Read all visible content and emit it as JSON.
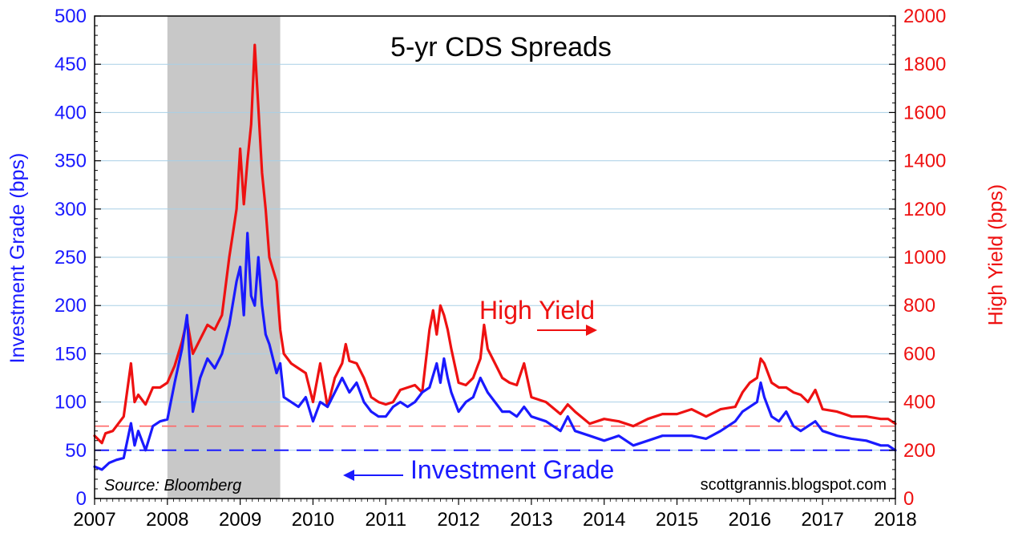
{
  "chart_data": {
    "type": "line",
    "title": "5-yr CDS Spreads",
    "ylabel_left": "Investment Grade (bps)",
    "ylabel_right": "High Yield (bps)",
    "ylim_left": [
      0,
      500
    ],
    "ylim_right": [
      0,
      2000
    ],
    "yticks_left": [
      "0",
      "50",
      "100",
      "150",
      "200",
      "250",
      "300",
      "350",
      "400",
      "450",
      "500"
    ],
    "yticks_right": [
      "0",
      "200",
      "400",
      "600",
      "800",
      "1000",
      "1200",
      "1400",
      "1600",
      "1800",
      "2000"
    ],
    "xlim": [
      2007,
      2018
    ],
    "xticks": [
      "2007",
      "2008",
      "2009",
      "2010",
      "2011",
      "2012",
      "2013",
      "2014",
      "2015",
      "2016",
      "2017",
      "2018"
    ],
    "grid": true,
    "recession_shading": [
      2008.0,
      2009.55
    ],
    "reference_lines": [
      {
        "axis": "left",
        "value": 50,
        "style": "dashed",
        "color": "#1a1aff"
      },
      {
        "axis": "right",
        "value": 300,
        "style": "dashed",
        "color": "#ff6666"
      }
    ],
    "annotations": {
      "high_yield": "High Yield",
      "investment_grade": "Investment Grade",
      "source": "Source: Bloomberg",
      "credit": "scottgrannis.blogspot.com"
    },
    "colors": {
      "high_yield": "#ee1111",
      "investment_grade": "#1a1aff",
      "recession": "#c8c8c8"
    },
    "series": [
      {
        "name": "High Yield",
        "axis": "right",
        "x": [
          2007.0,
          2007.1,
          2007.15,
          2007.25,
          2007.4,
          2007.5,
          2007.55,
          2007.6,
          2007.7,
          2007.8,
          2007.9,
          2008.0,
          2008.1,
          2008.2,
          2008.27,
          2008.35,
          2008.45,
          2008.55,
          2008.65,
          2008.75,
          2008.85,
          2008.9,
          2008.95,
          2009.0,
          2009.05,
          2009.1,
          2009.15,
          2009.2,
          2009.25,
          2009.3,
          2009.35,
          2009.4,
          2009.45,
          2009.5,
          2009.55,
          2009.6,
          2009.7,
          2009.8,
          2009.9,
          2010.0,
          2010.1,
          2010.2,
          2010.3,
          2010.4,
          2010.45,
          2010.5,
          2010.6,
          2010.7,
          2010.8,
          2010.9,
          2011.0,
          2011.1,
          2011.2,
          2011.3,
          2011.4,
          2011.5,
          2011.6,
          2011.65,
          2011.7,
          2011.75,
          2011.8,
          2011.85,
          2011.9,
          2012.0,
          2012.1,
          2012.2,
          2012.3,
          2012.35,
          2012.4,
          2012.5,
          2012.6,
          2012.7,
          2012.8,
          2012.9,
          2013.0,
          2013.2,
          2013.4,
          2013.5,
          2013.6,
          2013.8,
          2014.0,
          2014.2,
          2014.4,
          2014.6,
          2014.8,
          2015.0,
          2015.2,
          2015.4,
          2015.6,
          2015.8,
          2015.9,
          2016.0,
          2016.1,
          2016.15,
          2016.2,
          2016.3,
          2016.4,
          2016.5,
          2016.6,
          2016.7,
          2016.8,
          2016.9,
          2017.0,
          2017.2,
          2017.4,
          2017.6,
          2017.8,
          2017.9,
          2018.0
        ],
        "values": [
          260,
          230,
          270,
          280,
          340,
          560,
          400,
          430,
          390,
          460,
          460,
          480,
          550,
          650,
          740,
          600,
          660,
          720,
          700,
          760,
          1000,
          1100,
          1200,
          1450,
          1220,
          1400,
          1550,
          1880,
          1620,
          1350,
          1200,
          1000,
          950,
          900,
          700,
          600,
          560,
          540,
          520,
          400,
          560,
          380,
          500,
          560,
          640,
          570,
          560,
          500,
          420,
          400,
          390,
          400,
          450,
          460,
          470,
          440,
          700,
          780,
          680,
          800,
          760,
          700,
          620,
          480,
          470,
          500,
          580,
          720,
          620,
          560,
          500,
          480,
          470,
          560,
          420,
          400,
          350,
          390,
          360,
          310,
          330,
          320,
          300,
          330,
          350,
          350,
          370,
          340,
          370,
          380,
          440,
          480,
          500,
          580,
          560,
          480,
          460,
          460,
          440,
          430,
          400,
          450,
          370,
          360,
          340,
          340,
          330,
          330,
          310
        ]
      },
      {
        "name": "Investment Grade",
        "axis": "left",
        "x": [
          2007.0,
          2007.1,
          2007.2,
          2007.3,
          2007.4,
          2007.5,
          2007.55,
          2007.6,
          2007.7,
          2007.8,
          2007.9,
          2008.0,
          2008.1,
          2008.2,
          2008.27,
          2008.35,
          2008.45,
          2008.55,
          2008.65,
          2008.75,
          2008.85,
          2008.95,
          2009.0,
          2009.05,
          2009.1,
          2009.15,
          2009.2,
          2009.25,
          2009.3,
          2009.35,
          2009.4,
          2009.45,
          2009.5,
          2009.55,
          2009.6,
          2009.7,
          2009.8,
          2009.9,
          2010.0,
          2010.1,
          2010.2,
          2010.3,
          2010.4,
          2010.5,
          2010.6,
          2010.7,
          2010.8,
          2010.9,
          2011.0,
          2011.1,
          2011.2,
          2011.3,
          2011.4,
          2011.5,
          2011.6,
          2011.7,
          2011.75,
          2011.8,
          2011.85,
          2011.9,
          2012.0,
          2012.1,
          2012.2,
          2012.3,
          2012.4,
          2012.5,
          2012.6,
          2012.7,
          2012.8,
          2012.9,
          2013.0,
          2013.2,
          2013.4,
          2013.5,
          2013.6,
          2013.8,
          2014.0,
          2014.2,
          2014.4,
          2014.6,
          2014.8,
          2015.0,
          2015.2,
          2015.4,
          2015.6,
          2015.8,
          2015.9,
          2016.0,
          2016.1,
          2016.15,
          2016.2,
          2016.3,
          2016.4,
          2016.5,
          2016.6,
          2016.7,
          2016.8,
          2016.9,
          2017.0,
          2017.2,
          2017.4,
          2017.6,
          2017.8,
          2017.9,
          2018.0
        ],
        "values": [
          33,
          30,
          37,
          40,
          42,
          78,
          55,
          70,
          50,
          75,
          80,
          82,
          120,
          155,
          190,
          90,
          125,
          145,
          135,
          150,
          180,
          225,
          240,
          190,
          275,
          210,
          200,
          250,
          200,
          170,
          160,
          145,
          130,
          140,
          105,
          100,
          95,
          105,
          80,
          100,
          95,
          110,
          125,
          110,
          120,
          100,
          90,
          85,
          85,
          95,
          100,
          95,
          100,
          110,
          115,
          140,
          120,
          145,
          125,
          110,
          90,
          100,
          105,
          125,
          110,
          100,
          90,
          90,
          85,
          95,
          85,
          80,
          70,
          85,
          70,
          65,
          60,
          65,
          55,
          60,
          65,
          65,
          65,
          62,
          70,
          80,
          90,
          95,
          100,
          120,
          105,
          85,
          80,
          90,
          75,
          70,
          75,
          80,
          70,
          65,
          62,
          60,
          55,
          55,
          50
        ]
      }
    ]
  }
}
